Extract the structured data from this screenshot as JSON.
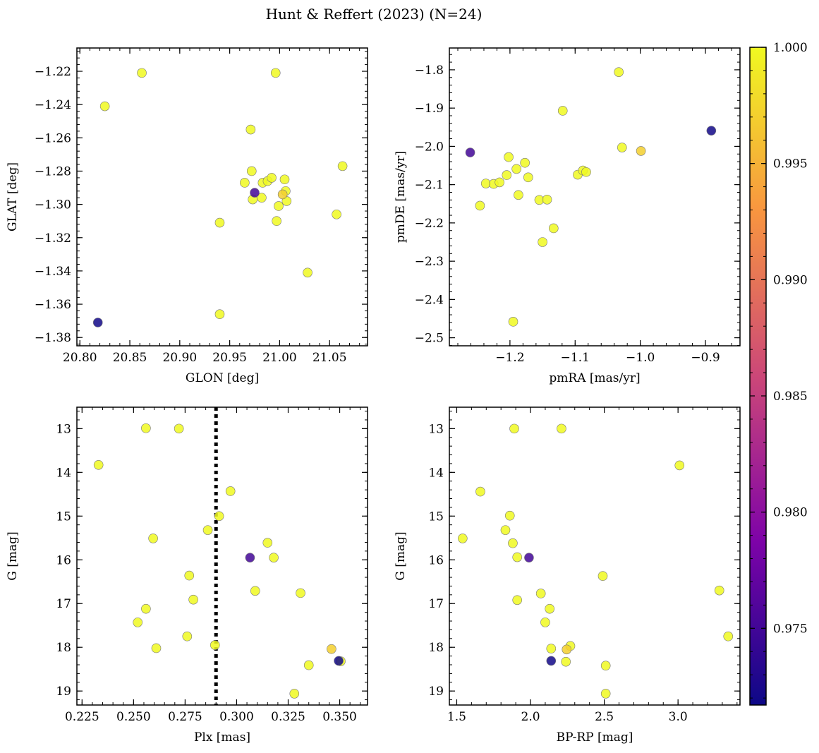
{
  "figure_title": "Hunt & Reffert (2023) (N=24)",
  "chart_data": [
    {
      "type": "scatter",
      "id": "glon-glat",
      "xlabel": "GLON [deg]",
      "ylabel": "GLAT [deg]",
      "xlim": [
        20.797,
        21.088
      ],
      "ylim": [
        -1.385,
        -1.206
      ],
      "y_inverted": false,
      "xticks": [
        20.8,
        20.85,
        20.9,
        20.95,
        21.0,
        21.05
      ],
      "xtick_labels": [
        "20.80",
        "20.85",
        "20.90",
        "20.95",
        "21.00",
        "21.05"
      ],
      "yticks": [
        -1.38,
        -1.36,
        -1.34,
        -1.32,
        -1.3,
        -1.28,
        -1.26,
        -1.24,
        -1.22
      ],
      "ytick_labels": [
        "−1.38",
        "−1.36",
        "−1.34",
        "−1.32",
        "−1.30",
        "−1.28",
        "−1.26",
        "−1.24",
        "−1.22"
      ],
      "points": [
        {
          "x": 20.818,
          "y": -1.371,
          "c": 0.972
        },
        {
          "x": 20.825,
          "y": -1.241,
          "c": 1.0
        },
        {
          "x": 20.862,
          "y": -1.221,
          "c": 1.0
        },
        {
          "x": 20.94,
          "y": -1.311,
          "c": 1.0
        },
        {
          "x": 20.94,
          "y": -1.366,
          "c": 1.0
        },
        {
          "x": 20.965,
          "y": -1.287,
          "c": 1.0
        },
        {
          "x": 20.971,
          "y": -1.255,
          "c": 1.0
        },
        {
          "x": 20.972,
          "y": -1.28,
          "c": 1.0
        },
        {
          "x": 20.975,
          "y": -1.293,
          "c": 0.975
        },
        {
          "x": 20.973,
          "y": -1.297,
          "c": 1.0
        },
        {
          "x": 20.982,
          "y": -1.296,
          "c": 1.0
        },
        {
          "x": 20.983,
          "y": -1.287,
          "c": 1.0
        },
        {
          "x": 20.988,
          "y": -1.286,
          "c": 1.0
        },
        {
          "x": 20.992,
          "y": -1.284,
          "c": 1.0
        },
        {
          "x": 20.996,
          "y": -1.221,
          "c": 1.0
        },
        {
          "x": 20.997,
          "y": -1.31,
          "c": 1.0
        },
        {
          "x": 20.999,
          "y": -1.301,
          "c": 1.0
        },
        {
          "x": 21.003,
          "y": -1.294,
          "c": 0.997
        },
        {
          "x": 21.005,
          "y": -1.285,
          "c": 1.0
        },
        {
          "x": 21.006,
          "y": -1.292,
          "c": 1.0
        },
        {
          "x": 21.007,
          "y": -1.298,
          "c": 1.0
        },
        {
          "x": 21.028,
          "y": -1.341,
          "c": 1.0
        },
        {
          "x": 21.057,
          "y": -1.306,
          "c": 1.0
        },
        {
          "x": 21.063,
          "y": -1.277,
          "c": 1.0
        }
      ]
    },
    {
      "type": "scatter",
      "id": "pmra-pmde",
      "xlabel": "pmRA [mas/yr]",
      "ylabel": "pmDE [mas/yr]",
      "xlim": [
        -1.293,
        -0.847
      ],
      "ylim": [
        -2.521,
        -1.743
      ],
      "y_inverted": false,
      "xticks": [
        -1.2,
        -1.1,
        -1.0,
        -0.9
      ],
      "xtick_labels": [
        "−1.2",
        "−1.1",
        "−1.0",
        "−0.9"
      ],
      "yticks": [
        -2.5,
        -2.4,
        -2.3,
        -2.2,
        -2.1,
        -2.0,
        -1.9,
        -1.8
      ],
      "ytick_labels": [
        "−2.5",
        "−2.4",
        "−2.3",
        "−2.2",
        "−2.1",
        "−2.0",
        "−1.9",
        "−1.8"
      ],
      "points": [
        {
          "x": -1.261,
          "y": -2.016,
          "c": 0.975
        },
        {
          "x": -1.246,
          "y": -2.155,
          "c": 1.0
        },
        {
          "x": -1.237,
          "y": -2.097,
          "c": 1.0
        },
        {
          "x": -1.225,
          "y": -2.098,
          "c": 1.0
        },
        {
          "x": -1.216,
          "y": -2.094,
          "c": 1.0
        },
        {
          "x": -1.205,
          "y": -2.075,
          "c": 1.0
        },
        {
          "x": -1.202,
          "y": -2.028,
          "c": 1.0
        },
        {
          "x": -1.195,
          "y": -2.458,
          "c": 1.0
        },
        {
          "x": -1.19,
          "y": -2.059,
          "c": 1.0
        },
        {
          "x": -1.187,
          "y": -2.127,
          "c": 1.0
        },
        {
          "x": -1.177,
          "y": -2.043,
          "c": 1.0
        },
        {
          "x": -1.172,
          "y": -2.081,
          "c": 1.0
        },
        {
          "x": -1.155,
          "y": -2.14,
          "c": 1.0
        },
        {
          "x": -1.15,
          "y": -2.25,
          "c": 1.0
        },
        {
          "x": -1.143,
          "y": -2.139,
          "c": 1.0
        },
        {
          "x": -1.133,
          "y": -2.214,
          "c": 1.0
        },
        {
          "x": -1.119,
          "y": -1.907,
          "c": 1.0
        },
        {
          "x": -1.096,
          "y": -2.074,
          "c": 1.0
        },
        {
          "x": -1.088,
          "y": -2.063,
          "c": 1.0
        },
        {
          "x": -1.083,
          "y": -2.067,
          "c": 1.0
        },
        {
          "x": -1.033,
          "y": -1.806,
          "c": 1.0
        },
        {
          "x": -1.028,
          "y": -2.003,
          "c": 1.0
        },
        {
          "x": -0.999,
          "y": -2.012,
          "c": 0.997
        },
        {
          "x": -0.891,
          "y": -1.959,
          "c": 0.972
        }
      ]
    },
    {
      "type": "scatter",
      "id": "plx-g",
      "xlabel": "Plx [mas]",
      "ylabel": "G [mag]",
      "xlim": [
        0.2225,
        0.3635
      ],
      "ylim": [
        19.32,
        12.51
      ],
      "y_inverted": true,
      "vline": {
        "x": 0.29,
        "style": "dotted"
      },
      "xticks": [
        0.225,
        0.25,
        0.275,
        0.3,
        0.325,
        0.35
      ],
      "xtick_labels": [
        "0.225",
        "0.250",
        "0.275",
        "0.300",
        "0.325",
        "0.350"
      ],
      "yticks": [
        13,
        14,
        15,
        16,
        17,
        18,
        19
      ],
      "ytick_labels": [
        "13",
        "14",
        "15",
        "16",
        "17",
        "18",
        "19"
      ],
      "points": [
        {
          "x": 0.233,
          "y": 13.83,
          "c": 1.0
        },
        {
          "x": 0.252,
          "y": 17.43,
          "c": 1.0
        },
        {
          "x": 0.256,
          "y": 12.99,
          "c": 1.0
        },
        {
          "x": 0.256,
          "y": 17.12,
          "c": 1.0
        },
        {
          "x": 0.2595,
          "y": 15.51,
          "c": 1.0
        },
        {
          "x": 0.261,
          "y": 18.02,
          "c": 1.0
        },
        {
          "x": 0.272,
          "y": 13.0,
          "c": 1.0
        },
        {
          "x": 0.276,
          "y": 17.75,
          "c": 1.0
        },
        {
          "x": 0.277,
          "y": 16.36,
          "c": 1.0
        },
        {
          "x": 0.279,
          "y": 16.91,
          "c": 1.0
        },
        {
          "x": 0.286,
          "y": 15.32,
          "c": 1.0
        },
        {
          "x": 0.2895,
          "y": 17.95,
          "c": 1.0
        },
        {
          "x": 0.2915,
          "y": 15.0,
          "c": 1.0
        },
        {
          "x": 0.297,
          "y": 14.43,
          "c": 1.0
        },
        {
          "x": 0.3065,
          "y": 15.95,
          "c": 0.975
        },
        {
          "x": 0.309,
          "y": 16.71,
          "c": 1.0
        },
        {
          "x": 0.315,
          "y": 15.61,
          "c": 1.0
        },
        {
          "x": 0.318,
          "y": 15.95,
          "c": 1.0
        },
        {
          "x": 0.328,
          "y": 19.06,
          "c": 1.0
        },
        {
          "x": 0.331,
          "y": 16.76,
          "c": 1.0
        },
        {
          "x": 0.335,
          "y": 18.41,
          "c": 1.0
        },
        {
          "x": 0.346,
          "y": 18.04,
          "c": 0.997
        },
        {
          "x": 0.3495,
          "y": 18.31,
          "c": 0.972
        },
        {
          "x": 0.3505,
          "y": 18.32,
          "c": 1.0
        }
      ]
    },
    {
      "type": "scatter",
      "id": "bprp-g",
      "xlabel": "BP-RP [mag]",
      "ylabel": "G [mag]",
      "xlim": [
        1.45,
        3.42
      ],
      "ylim": [
        19.32,
        12.51
      ],
      "y_inverted": true,
      "xticks": [
        1.5,
        2.0,
        2.5,
        3.0
      ],
      "xtick_labels": [
        "1.5",
        "2.0",
        "2.5",
        "3.0"
      ],
      "yticks": [
        13,
        14,
        15,
        16,
        17,
        18,
        19
      ],
      "ytick_labels": [
        "13",
        "14",
        "15",
        "16",
        "17",
        "18",
        "19"
      ],
      "points": [
        {
          "x": 1.54,
          "y": 15.51,
          "c": 1.0
        },
        {
          "x": 1.66,
          "y": 14.44,
          "c": 1.0
        },
        {
          "x": 1.83,
          "y": 15.32,
          "c": 1.0
        },
        {
          "x": 1.86,
          "y": 14.99,
          "c": 1.0
        },
        {
          "x": 1.88,
          "y": 15.62,
          "c": 1.0
        },
        {
          "x": 1.89,
          "y": 13.0,
          "c": 1.0
        },
        {
          "x": 1.91,
          "y": 15.94,
          "c": 1.0
        },
        {
          "x": 1.91,
          "y": 16.92,
          "c": 1.0
        },
        {
          "x": 1.99,
          "y": 15.95,
          "c": 0.975
        },
        {
          "x": 2.07,
          "y": 16.77,
          "c": 1.0
        },
        {
          "x": 2.1,
          "y": 17.43,
          "c": 1.0
        },
        {
          "x": 2.13,
          "y": 17.12,
          "c": 1.0
        },
        {
          "x": 2.14,
          "y": 18.03,
          "c": 1.0
        },
        {
          "x": 2.14,
          "y": 18.31,
          "c": 0.972
        },
        {
          "x": 2.21,
          "y": 13.0,
          "c": 1.0
        },
        {
          "x": 2.24,
          "y": 18.33,
          "c": 1.0
        },
        {
          "x": 2.245,
          "y": 18.05,
          "c": 0.997
        },
        {
          "x": 2.27,
          "y": 17.97,
          "c": 1.0
        },
        {
          "x": 2.49,
          "y": 16.37,
          "c": 1.0
        },
        {
          "x": 2.51,
          "y": 18.42,
          "c": 1.0
        },
        {
          "x": 2.51,
          "y": 19.06,
          "c": 1.0
        },
        {
          "x": 3.01,
          "y": 13.84,
          "c": 1.0
        },
        {
          "x": 3.28,
          "y": 16.7,
          "c": 1.0
        },
        {
          "x": 3.34,
          "y": 17.75,
          "c": 1.0
        }
      ]
    }
  ],
  "colorbar": {
    "vmin": 0.9717,
    "vmax": 1.0,
    "ticks": [
      0.975,
      0.98,
      0.985,
      0.99,
      0.995,
      1.0
    ],
    "tick_labels": [
      "0.975",
      "0.980",
      "0.985",
      "0.990",
      "0.995",
      "1.000"
    ],
    "colormap": "plasma"
  }
}
